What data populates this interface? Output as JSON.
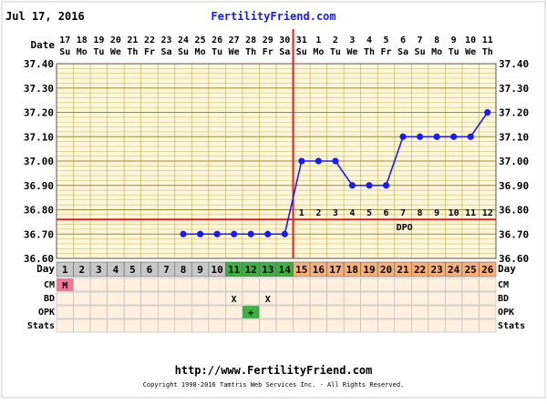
{
  "header": {
    "date": "Jul 17, 2016",
    "site": "FertilityFriend.com"
  },
  "footer": {
    "url": "http://www.FertilityFriend.com",
    "copyright": "Copyright 1998-2016 Tamtris Web Services Inc. - All Rights Reserved."
  },
  "row_labels": {
    "date": "Date",
    "day": "Day",
    "cm": "CM",
    "bd": "BD",
    "opk": "OPK",
    "stats": "Stats",
    "dpo": "DPO"
  },
  "colors": {
    "line": "#1a1aff",
    "coverline": "#e02020",
    "plot_bg": "#fff8d8",
    "grid": "#c8b060",
    "day_pre": "#c8c8c8",
    "day_fertile": "#3cb043",
    "day_luteal": "#f4b27a",
    "cm_menstrual": "#ee7799",
    "opk_positive": "#3cb043",
    "row_bg": "#fff0e0"
  },
  "chart_data": {
    "type": "line",
    "title": "",
    "xlabel": "Day",
    "ylabel": "",
    "ylim": [
      36.6,
      37.4
    ],
    "y_ticks": [
      "36.60",
      "36.70",
      "36.80",
      "36.90",
      "37.00",
      "37.10",
      "37.20",
      "37.30",
      "37.40"
    ],
    "cycle_days": [
      "1",
      "2",
      "3",
      "4",
      "5",
      "6",
      "7",
      "8",
      "9",
      "10",
      "11",
      "12",
      "13",
      "14",
      "15",
      "16",
      "17",
      "18",
      "19",
      "20",
      "21",
      "22",
      "23",
      "24",
      "25",
      "26"
    ],
    "dates": [
      "17",
      "18",
      "19",
      "20",
      "21",
      "22",
      "23",
      "24",
      "25",
      "26",
      "27",
      "28",
      "29",
      "30",
      "31",
      "1",
      "2",
      "3",
      "4",
      "5",
      "6",
      "7",
      "8",
      "9",
      "10",
      "11"
    ],
    "weekdays": [
      "Su",
      "Mo",
      "Tu",
      "We",
      "Th",
      "Fr",
      "Sa",
      "Su",
      "Mo",
      "Tu",
      "We",
      "Th",
      "Fr",
      "Sa",
      "Su",
      "Mo",
      "Tu",
      "We",
      "Th",
      "Fr",
      "Sa",
      "Su",
      "Mo",
      "Tu",
      "We",
      "Th"
    ],
    "series": [
      {
        "values": [
          null,
          null,
          null,
          null,
          null,
          null,
          null,
          36.7,
          36.7,
          36.7,
          36.7,
          36.7,
          36.7,
          36.7,
          37.0,
          37.0,
          37.0,
          36.9,
          36.9,
          36.9,
          37.1,
          37.1,
          37.1,
          37.1,
          37.1,
          37.2
        ]
      }
    ],
    "coverline": 36.76,
    "ovulation_day": 14,
    "dpo_labels": [
      "1",
      "2",
      "3",
      "4",
      "5",
      "6",
      "7",
      "8",
      "9",
      "10",
      "11",
      "12"
    ],
    "fertile_days": [
      11,
      12,
      13,
      14
    ],
    "cm": [
      "M",
      "",
      "",
      "",
      "",
      "",
      "",
      "",
      "",
      "",
      "",
      "",
      "",
      "",
      "",
      "",
      "",
      "",
      "",
      "",
      "",
      "",
      "",
      "",
      "",
      ""
    ],
    "bd": [
      "",
      "",
      "",
      "",
      "",
      "",
      "",
      "",
      "",
      "",
      "X",
      "",
      "X",
      "",
      "",
      "",
      "",
      "",
      "",
      "",
      "",
      "",
      "",
      "",
      "",
      ""
    ],
    "opk": [
      "",
      "",
      "",
      "",
      "",
      "",
      "",
      "",
      "",
      "",
      "",
      "+",
      "",
      "",
      "",
      "",
      "",
      "",
      "",
      "",
      "",
      "",
      "",
      "",
      "",
      ""
    ],
    "grid": true
  }
}
